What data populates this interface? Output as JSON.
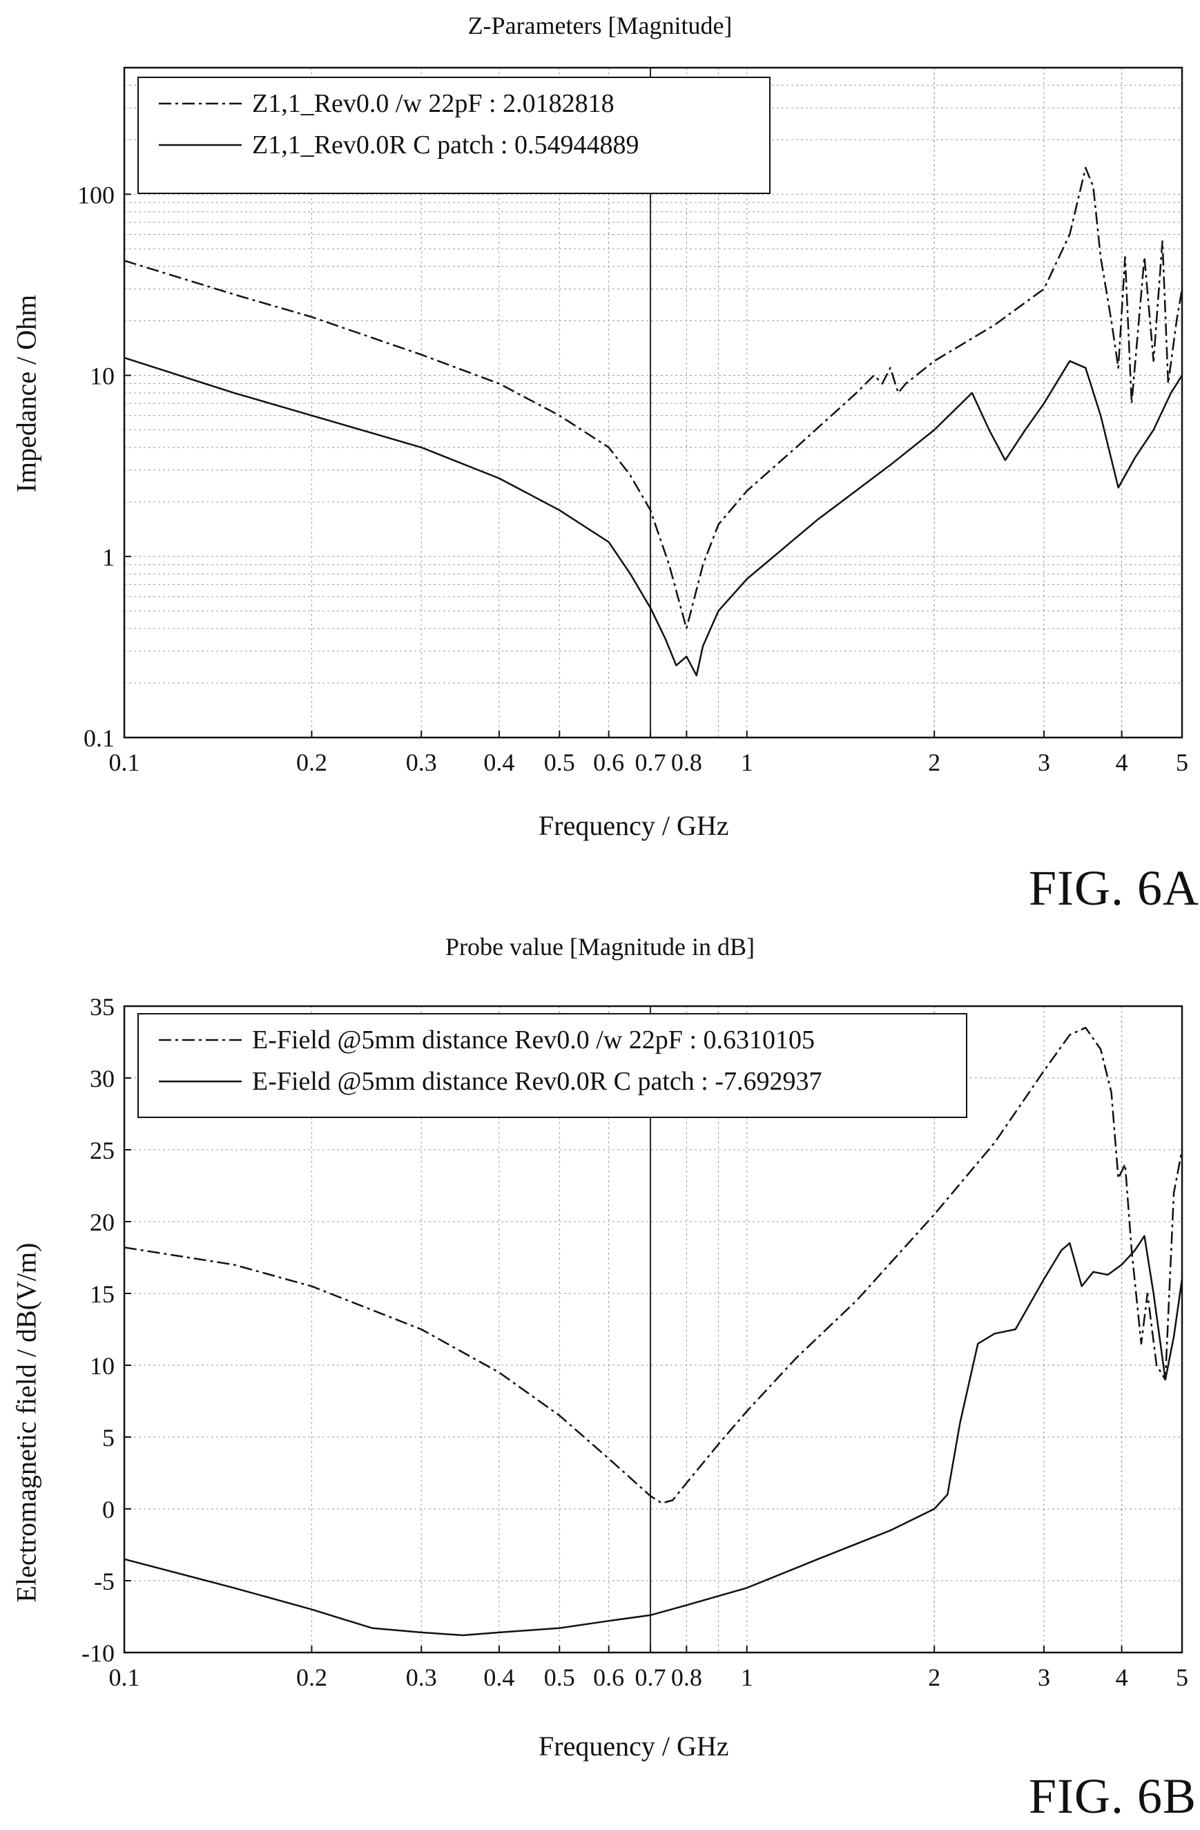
{
  "figures": {
    "a": {
      "label": "FIG. 6A"
    },
    "b": {
      "label": "FIG. 6B"
    }
  },
  "chart_data": [
    {
      "type": "line",
      "title": "Z-Parameters [Magnitude]",
      "xlabel": "Frequency / GHz",
      "ylabel": "Impedance / Ohm",
      "xscale": "log",
      "yscale": "log",
      "xlim": [
        0.1,
        5
      ],
      "ylim": [
        0.1,
        500
      ],
      "xticks": [
        0.1,
        0.2,
        0.3,
        0.4,
        0.5,
        0.6,
        0.7,
        0.8,
        1,
        2,
        3,
        4,
        5
      ],
      "xtick_labels": [
        "0.1",
        "0.2",
        "0.3",
        "0.4",
        "0.5",
        "0.6",
        "0.7",
        "0.8",
        "1",
        "2",
        "3",
        "4",
        "5"
      ],
      "yticks": [
        0.1,
        1,
        10,
        100
      ],
      "ytick_labels": [
        "0.1",
        "1",
        "10",
        "100"
      ],
      "grid": true,
      "marker_line_x": 0.7,
      "legend_position": "top-left",
      "series": [
        {
          "name": "Z1,1_Rev0.0 /w 22pF : 2.0182818",
          "style": "dashdot",
          "x": [
            0.1,
            0.15,
            0.2,
            0.3,
            0.4,
            0.5,
            0.6,
            0.65,
            0.7,
            0.75,
            0.8,
            0.85,
            0.9,
            1.0,
            1.2,
            1.5,
            1.6,
            1.65,
            1.7,
            1.75,
            1.8,
            2.0,
            2.5,
            3.0,
            3.3,
            3.5,
            3.6,
            3.7,
            3.85,
            3.95,
            4.05,
            4.15,
            4.25,
            4.35,
            4.5,
            4.65,
            4.75,
            4.9,
            5.0
          ],
          "y": [
            43,
            28,
            21,
            13,
            9,
            6,
            4,
            2.8,
            1.8,
            0.9,
            0.4,
            0.9,
            1.5,
            2.3,
            4,
            8,
            10,
            9,
            11,
            8,
            9,
            12,
            19,
            30,
            60,
            140,
            110,
            45,
            20,
            11,
            45,
            7,
            18,
            45,
            12,
            55,
            9,
            20,
            30
          ]
        },
        {
          "name": "Z1,1_Rev0.0R C patch : 0.54944889",
          "style": "solid",
          "x": [
            0.1,
            0.15,
            0.2,
            0.25,
            0.3,
            0.4,
            0.5,
            0.6,
            0.65,
            0.7,
            0.74,
            0.77,
            0.8,
            0.83,
            0.85,
            0.9,
            1.0,
            1.3,
            1.7,
            2.0,
            2.3,
            2.45,
            2.6,
            2.8,
            3.0,
            3.3,
            3.5,
            3.7,
            3.95,
            4.2,
            4.5,
            4.8,
            5.0
          ],
          "y": [
            12.5,
            8,
            6,
            4.8,
            4,
            2.7,
            1.8,
            1.2,
            0.8,
            0.52,
            0.35,
            0.25,
            0.28,
            0.22,
            0.32,
            0.5,
            0.75,
            1.6,
            3.2,
            5,
            8,
            5,
            3.4,
            5,
            7,
            12,
            11,
            6,
            2.4,
            3.5,
            5,
            8,
            10
          ]
        }
      ]
    },
    {
      "type": "line",
      "title": "Probe value [Magnitude in dB]",
      "xlabel": "Frequency / GHz",
      "ylabel": "Electromagnetic field / dB(V/m)",
      "xscale": "log",
      "yscale": "linear",
      "xlim": [
        0.1,
        5
      ],
      "ylim": [
        -10,
        35
      ],
      "xticks": [
        0.1,
        0.2,
        0.3,
        0.4,
        0.5,
        0.6,
        0.7,
        0.8,
        1,
        2,
        3,
        4,
        5
      ],
      "xtick_labels": [
        "0.1",
        "0.2",
        "0.3",
        "0.4",
        "0.5",
        "0.6",
        "0.7",
        "0.8",
        "1",
        "2",
        "3",
        "4",
        "5"
      ],
      "yticks": [
        -10,
        -5,
        0,
        5,
        10,
        15,
        20,
        25,
        30,
        35
      ],
      "ytick_labels": [
        "-10",
        "-5",
        "0",
        "5",
        "10",
        "15",
        "20",
        "25",
        "30",
        "35"
      ],
      "grid": true,
      "marker_line_x": 0.7,
      "legend_position": "top-left",
      "series": [
        {
          "name": "E-Field @5mm distance Rev0.0 /w 22pF : 0.6310105",
          "style": "dashdot",
          "x": [
            0.1,
            0.15,
            0.2,
            0.3,
            0.4,
            0.5,
            0.6,
            0.7,
            0.73,
            0.76,
            0.8,
            0.9,
            1.0,
            1.2,
            1.5,
            2.0,
            2.5,
            3.0,
            3.3,
            3.5,
            3.7,
            3.85,
            3.95,
            4.05,
            4.15,
            4.3,
            4.4,
            4.55,
            4.7,
            4.85,
            5.0
          ],
          "y": [
            18.2,
            17,
            15.5,
            12.5,
            9.5,
            6.5,
            3.5,
            0.9,
            0.4,
            0.6,
            1.8,
            4.5,
            6.8,
            10.5,
            14.5,
            20.5,
            25.5,
            30.5,
            33,
            33.5,
            32,
            29,
            23,
            24,
            18,
            11.5,
            15,
            10,
            9,
            22,
            25
          ]
        },
        {
          "name": "E-Field @5mm distance Rev0.0R C patch : -7.692937",
          "style": "solid",
          "x": [
            0.1,
            0.15,
            0.2,
            0.25,
            0.3,
            0.35,
            0.4,
            0.5,
            0.6,
            0.7,
            0.8,
            1.0,
            1.3,
            1.7,
            2.0,
            2.1,
            2.2,
            2.35,
            2.5,
            2.7,
            3.0,
            3.2,
            3.3,
            3.45,
            3.6,
            3.8,
            4.0,
            4.2,
            4.35,
            4.5,
            4.6,
            4.7,
            4.85,
            5.0
          ],
          "y": [
            -3.5,
            -5.5,
            -7,
            -8.3,
            -8.6,
            -8.8,
            -8.6,
            -8.3,
            -7.8,
            -7.4,
            -6.7,
            -5.5,
            -3.5,
            -1.5,
            0,
            1,
            6,
            11.5,
            12.2,
            12.5,
            16,
            18,
            18.5,
            15.5,
            16.5,
            16.3,
            17,
            18,
            19,
            15,
            12,
            9,
            12,
            16
          ]
        }
      ]
    }
  ]
}
